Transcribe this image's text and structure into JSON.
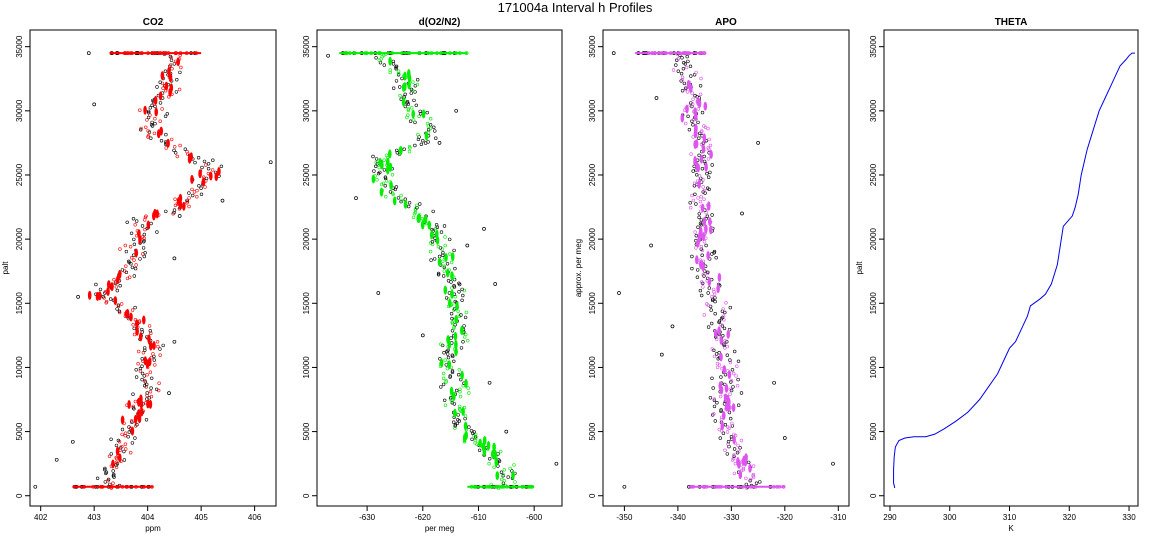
{
  "figure": {
    "title": "171004a   Interval h Profiles"
  },
  "chart_data": [
    {
      "type": "scatter",
      "title": "CO2",
      "xlabel": "ppm",
      "ylabel": "palt",
      "xlim": [
        401.8,
        406.4
      ],
      "ylim": [
        -800,
        36300
      ],
      "xticks": [
        402,
        403,
        404,
        405,
        406
      ],
      "yticks": [
        0,
        5000,
        10000,
        15000,
        20000,
        25000,
        30000,
        35000
      ],
      "color": "#ff0000",
      "profile": [
        [
          0,
          403.3
        ],
        [
          700,
          403.3
        ],
        [
          1500,
          403.2
        ],
        [
          2500,
          403.4
        ],
        [
          3500,
          403.5
        ],
        [
          4500,
          403.6
        ],
        [
          5500,
          403.7
        ],
        [
          6500,
          403.8
        ],
        [
          7500,
          403.9
        ],
        [
          8500,
          404.0
        ],
        [
          9500,
          404.0
        ],
        [
          10500,
          404.0
        ],
        [
          11500,
          404.1
        ],
        [
          12500,
          404.0
        ],
        [
          13500,
          403.8
        ],
        [
          14500,
          403.5
        ],
        [
          15500,
          403.1
        ],
        [
          16500,
          403.3
        ],
        [
          17500,
          403.7
        ],
        [
          18500,
          403.8
        ],
        [
          19500,
          403.8
        ],
        [
          20500,
          403.9
        ],
        [
          21500,
          403.9
        ],
        [
          22500,
          404.6
        ],
        [
          23500,
          404.9
        ],
        [
          24500,
          405.0
        ],
        [
          25500,
          405.3
        ],
        [
          26500,
          404.7
        ],
        [
          27500,
          404.4
        ],
        [
          28500,
          404.0
        ],
        [
          29500,
          404.1
        ],
        [
          30500,
          404.2
        ],
        [
          31500,
          404.3
        ],
        [
          32500,
          404.4
        ],
        [
          33500,
          404.4
        ],
        [
          34500,
          404.5
        ]
      ],
      "bands": [
        {
          "y": 700,
          "x_min": 402.6,
          "x_max": 404.1
        },
        {
          "y": 34500,
          "x_min": 403.3,
          "x_max": 405.0
        }
      ],
      "outliers": [
        [
          700,
          401.9
        ],
        [
          26000,
          406.3
        ],
        [
          34500,
          402.9
        ],
        [
          4200,
          402.6
        ],
        [
          30500,
          403.0
        ],
        [
          15500,
          402.7
        ],
        [
          12000,
          404.5
        ],
        [
          23000,
          405.4
        ],
        [
          8000,
          404.4
        ],
        [
          2800,
          402.3
        ],
        [
          18500,
          404.5
        ],
        [
          21800,
          404.6
        ]
      ]
    },
    {
      "type": "scatter",
      "title": "d(O2/N2)",
      "xlabel": "per meg",
      "ylabel": "",
      "xlim": [
        -639,
        -595
      ],
      "ylim": [
        -800,
        36300
      ],
      "xticks": [
        -630,
        -620,
        -610,
        -600
      ],
      "yticks": [
        0,
        5000,
        10000,
        15000,
        20000,
        25000,
        30000,
        35000
      ],
      "color": "#00ee00",
      "profile": [
        [
          0,
          -606
        ],
        [
          700,
          -606
        ],
        [
          1500,
          -605
        ],
        [
          2500,
          -606
        ],
        [
          3500,
          -608
        ],
        [
          4500,
          -611
        ],
        [
          5500,
          -613
        ],
        [
          6500,
          -614
        ],
        [
          7500,
          -614
        ],
        [
          8500,
          -614
        ],
        [
          9500,
          -615
        ],
        [
          10500,
          -616
        ],
        [
          11500,
          -615
        ],
        [
          12500,
          -614
        ],
        [
          13500,
          -614
        ],
        [
          14500,
          -614
        ],
        [
          15500,
          -615
        ],
        [
          16500,
          -615
        ],
        [
          17500,
          -616
        ],
        [
          18500,
          -617
        ],
        [
          19500,
          -617
        ],
        [
          20500,
          -618
        ],
        [
          21500,
          -619
        ],
        [
          22500,
          -622
        ],
        [
          23500,
          -626
        ],
        [
          24500,
          -627
        ],
        [
          25500,
          -627
        ],
        [
          26500,
          -627
        ],
        [
          27500,
          -620
        ],
        [
          28500,
          -619
        ],
        [
          29500,
          -621
        ],
        [
          30500,
          -622
        ],
        [
          31500,
          -623
        ],
        [
          32500,
          -623
        ],
        [
          33500,
          -625
        ],
        [
          34500,
          -628
        ]
      ],
      "bands": [
        {
          "y": 700,
          "x_min": -612,
          "x_max": -600
        },
        {
          "y": 34500,
          "x_min": -635,
          "x_max": -612
        }
      ],
      "outliers": [
        [
          34300,
          -637
        ],
        [
          2500,
          -596
        ],
        [
          16500,
          -607
        ],
        [
          19500,
          -612
        ],
        [
          15800,
          -628
        ],
        [
          23200,
          -632
        ],
        [
          8800,
          -608
        ],
        [
          12500,
          -620
        ],
        [
          30000,
          -614
        ],
        [
          5000,
          -605
        ],
        [
          27500,
          -617
        ],
        [
          20800,
          -609
        ]
      ]
    },
    {
      "type": "scatter",
      "title": "APO",
      "xlabel": "",
      "ylabel": "approx. per meg",
      "xlim": [
        -354,
        -308
      ],
      "ylim": [
        -800,
        36300
      ],
      "xticks": [
        -350,
        -340,
        -330,
        -320,
        -310
      ],
      "yticks": [
        0,
        5000,
        10000,
        15000,
        20000,
        25000,
        30000,
        35000
      ],
      "color": "#dd55ee",
      "profile": [
        [
          0,
          -326
        ],
        [
          700,
          -326
        ],
        [
          1500,
          -327
        ],
        [
          2500,
          -328
        ],
        [
          3500,
          -329
        ],
        [
          4500,
          -330
        ],
        [
          5500,
          -331
        ],
        [
          6500,
          -331
        ],
        [
          7500,
          -331
        ],
        [
          8500,
          -331
        ],
        [
          9500,
          -331
        ],
        [
          10500,
          -331
        ],
        [
          11500,
          -332
        ],
        [
          12500,
          -332
        ],
        [
          13500,
          -332
        ],
        [
          14500,
          -333
        ],
        [
          15500,
          -334
        ],
        [
          16500,
          -334
        ],
        [
          17500,
          -335
        ],
        [
          18500,
          -335
        ],
        [
          19500,
          -335
        ],
        [
          20500,
          -335
        ],
        [
          21500,
          -335
        ],
        [
          22500,
          -336
        ],
        [
          23500,
          -336
        ],
        [
          24500,
          -336
        ],
        [
          25500,
          -336
        ],
        [
          26500,
          -335
        ],
        [
          27500,
          -335
        ],
        [
          28500,
          -336
        ],
        [
          29500,
          -337
        ],
        [
          30500,
          -337
        ],
        [
          31500,
          -338
        ],
        [
          32500,
          -338
        ],
        [
          33500,
          -339
        ],
        [
          34500,
          -340
        ]
      ],
      "bands": [
        {
          "y": 700,
          "x_min": -338,
          "x_max": -320
        },
        {
          "y": 34500,
          "x_min": -348,
          "x_max": -335
        }
      ],
      "outliers": [
        [
          700,
          -350
        ],
        [
          34500,
          -352
        ],
        [
          2500,
          -311
        ],
        [
          15800,
          -351
        ],
        [
          19500,
          -345
        ],
        [
          27500,
          -325
        ],
        [
          13200,
          -341
        ],
        [
          8800,
          -322
        ],
        [
          22000,
          -328
        ],
        [
          4500,
          -320
        ],
        [
          11000,
          -343
        ],
        [
          31000,
          -344
        ]
      ]
    },
    {
      "type": "line",
      "title": "THETA",
      "xlabel": "K",
      "ylabel": "palt",
      "xlim": [
        289.0,
        331.5
      ],
      "ylim": [
        -800,
        36300
      ],
      "xticks": [
        290,
        300,
        310,
        320,
        330
      ],
      "yticks": [
        0,
        5000,
        10000,
        15000,
        20000,
        25000,
        30000,
        35000
      ],
      "color": "#0000ee",
      "x": [
        290.8,
        290.6,
        290.6,
        290.7,
        290.9,
        291.5,
        292.5,
        294.0,
        296.0,
        297.5,
        299.0,
        301.0,
        303.0,
        305.0,
        306.5,
        308.0,
        309.0,
        310.0,
        311.0,
        312.0,
        313.0,
        313.5,
        315.0,
        316.0,
        317.0,
        318.0,
        318.5,
        319.0,
        320.5,
        321.0,
        321.5,
        322.0,
        322.5,
        323.0,
        324.0,
        325.0,
        326.0,
        327.0,
        328.0,
        328.5,
        329.5,
        330.0,
        330.5,
        331.0
      ],
      "y": [
        600,
        1000,
        2000,
        3000,
        3800,
        4300,
        4500,
        4600,
        4600,
        4800,
        5200,
        5800,
        6500,
        7500,
        8500,
        9500,
        10500,
        11500,
        12000,
        13000,
        14000,
        14800,
        15300,
        15700,
        16500,
        18000,
        19500,
        21000,
        21800,
        22500,
        23500,
        25000,
        26000,
        27000,
        28500,
        30000,
        31000,
        32000,
        33000,
        33500,
        34000,
        34300,
        34500,
        34500
      ]
    }
  ]
}
